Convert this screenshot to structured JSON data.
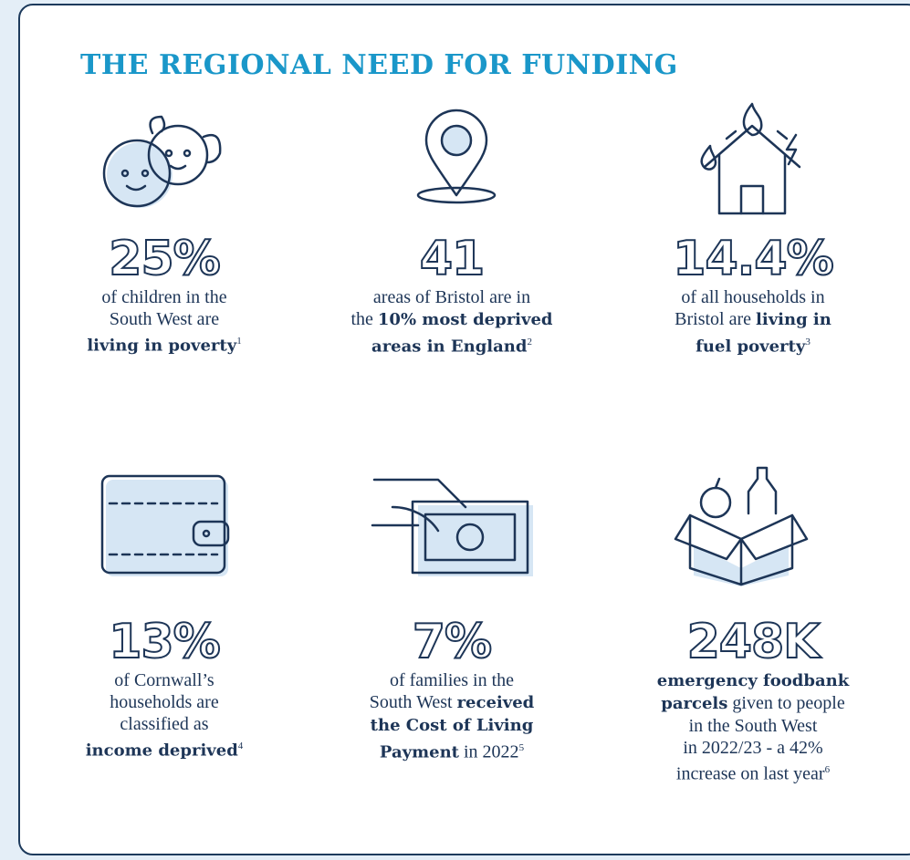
{
  "title": "THE REGIONAL NEED FOR FUNDING",
  "items": [
    {
      "stat": "25%",
      "lines": [
        [
          {
            "text": "of children in the",
            "style": "normal"
          }
        ],
        [
          {
            "text": "South West are",
            "style": "normal"
          }
        ],
        [
          {
            "text": "living in poverty",
            "style": "bold"
          },
          {
            "text": "1",
            "style": "sup"
          }
        ]
      ]
    },
    {
      "stat": "41",
      "lines": [
        [
          {
            "text": "areas of Bristol are in",
            "style": "normal"
          }
        ],
        [
          {
            "text": "the ",
            "style": "normal"
          },
          {
            "text": "10% most deprived",
            "style": "bold"
          }
        ],
        [
          {
            "text": "areas in England",
            "style": "bold"
          },
          {
            "text": "2",
            "style": "sup"
          }
        ]
      ]
    },
    {
      "stat": "14.4%",
      "lines": [
        [
          {
            "text": "of all households in",
            "style": "normal"
          }
        ],
        [
          {
            "text": "Bristol are ",
            "style": "normal"
          },
          {
            "text": "living in",
            "style": "bold"
          }
        ],
        [
          {
            "text": "fuel poverty",
            "style": "bold"
          },
          {
            "text": "3",
            "style": "sup"
          }
        ]
      ]
    },
    {
      "stat": "13%",
      "lines": [
        [
          {
            "text": "of Cornwall’s",
            "style": "normal"
          }
        ],
        [
          {
            "text": "households are",
            "style": "normal"
          }
        ],
        [
          {
            "text": "classified as",
            "style": "normal"
          }
        ],
        [
          {
            "text": "income deprived",
            "style": "bold"
          },
          {
            "text": "4",
            "style": "sup"
          }
        ]
      ]
    },
    {
      "stat": "7%",
      "lines": [
        [
          {
            "text": "of families in the",
            "style": "normal"
          }
        ],
        [
          {
            "text": "South West ",
            "style": "normal"
          },
          {
            "text": "received",
            "style": "bold"
          }
        ],
        [
          {
            "text": "the Cost of Living",
            "style": "bold"
          }
        ],
        [
          {
            "text": "Payment",
            "style": "bold"
          },
          {
            "text": " in 2022",
            "style": "normal"
          },
          {
            "text": "5",
            "style": "sup"
          }
        ]
      ]
    },
    {
      "stat": "248K",
      "lines": [
        [
          {
            "text": "emergency foodbank",
            "style": "bold"
          }
        ],
        [
          {
            "text": "parcels",
            "style": "bold"
          },
          {
            "text": " given to people",
            "style": "normal"
          }
        ],
        [
          {
            "text": "in the South West",
            "style": "normal"
          }
        ],
        [
          {
            "text": "in 2022/23 - a 42%",
            "style": "normal"
          }
        ],
        [
          {
            "text": "increase on last year",
            "style": "normal"
          },
          {
            "text": "6",
            "style": "sup"
          }
        ]
      ]
    }
  ]
}
